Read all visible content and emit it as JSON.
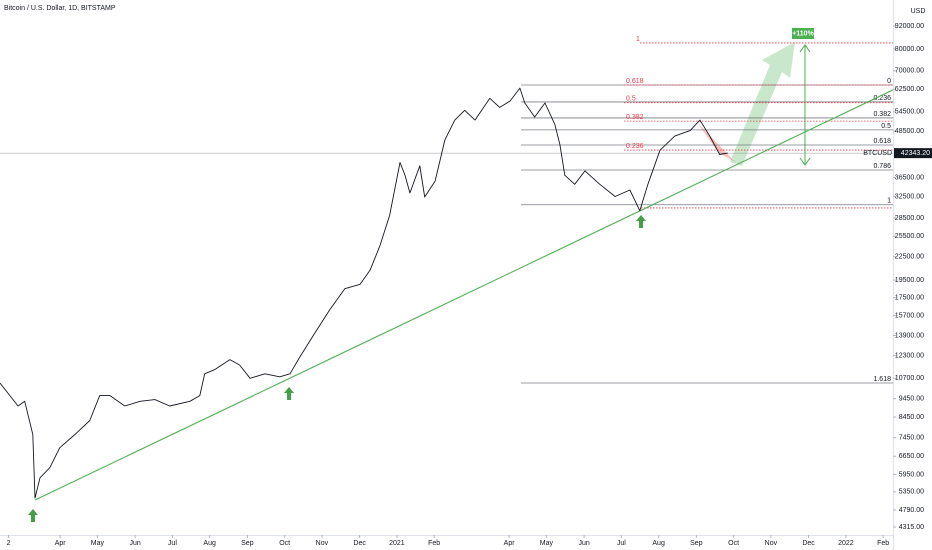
{
  "chart_data": {
    "type": "line",
    "title": "Bitcoin / U.S. Dollar, 1D, BITSTAMP",
    "currency": "USD",
    "log_scale": true,
    "xlim": [
      2020.116,
      2022.105
    ],
    "ylim": [
      4110,
      107900
    ],
    "xticks": [
      {
        "value": 2020.135,
        "label": "2"
      },
      {
        "value": 2020.25,
        "label": "Apr"
      },
      {
        "value": 2020.333,
        "label": "May"
      },
      {
        "value": 2020.417,
        "label": "Jun"
      },
      {
        "value": 2020.5,
        "label": "Jul"
      },
      {
        "value": 2020.583,
        "label": "Aug"
      },
      {
        "value": 2020.667,
        "label": "Sep"
      },
      {
        "value": 2020.75,
        "label": "Oct"
      },
      {
        "value": 2020.833,
        "label": "Nov"
      },
      {
        "value": 2020.917,
        "label": "Dec"
      },
      2021,
      {
        "value": 2021.083,
        "label": "Feb"
      },
      {
        "value": 2021.25,
        "label": "Apr"
      },
      {
        "value": 2021.333,
        "label": "May"
      },
      {
        "value": 2021.417,
        "label": "Jun"
      },
      {
        "value": 2021.5,
        "label": "Jul"
      },
      {
        "value": 2021.583,
        "label": "Aug"
      },
      {
        "value": 2021.667,
        "label": "Sep"
      },
      {
        "value": 2021.75,
        "label": "Oct"
      },
      {
        "value": 2021.833,
        "label": "Nov"
      },
      {
        "value": 2021.917,
        "label": "Dec"
      },
      2022,
      {
        "value": 2022.083,
        "label": "Feb"
      }
    ],
    "yticks": [
      {
        "value": 4315,
        "label": "4315.00"
      },
      {
        "value": 4790,
        "label": "4790.00"
      },
      {
        "value": 5350,
        "label": "5350.00"
      },
      {
        "value": 5950,
        "label": "5950.00"
      },
      {
        "value": 6650,
        "label": "6650.00"
      },
      {
        "value": 7450,
        "label": "7450.00"
      },
      {
        "value": 8450,
        "label": "8450.00"
      },
      {
        "value": 9450,
        "label": "9450.00"
      },
      {
        "value": 10700,
        "label": "10700.00"
      },
      {
        "value": 12300,
        "label": "12300.00"
      },
      {
        "value": 13900,
        "label": "13900.00"
      },
      {
        "value": 15700,
        "label": "15700.00"
      },
      {
        "value": 17500,
        "label": "17500.00"
      },
      {
        "value": 19500,
        "label": "19500.00"
      },
      {
        "value": 22500,
        "label": "22500.00"
      },
      {
        "value": 25500,
        "label": "25500.00"
      },
      {
        "value": 28500,
        "label": "28500.00"
      },
      {
        "value": 32500,
        "label": "32500.00"
      },
      {
        "value": 36500,
        "label": "36500.00"
      },
      {
        "value": 48500,
        "label": "48500.00"
      },
      {
        "value": 54500,
        "label": "54500.00"
      },
      {
        "value": 62500,
        "label": "62500.00"
      },
      {
        "value": 70000,
        "label": "70000.00"
      },
      {
        "value": 80000,
        "label": "80000.00"
      },
      {
        "value": 92000,
        "label": "92000.00"
      }
    ],
    "series": [
      {
        "name": "BTCUSD",
        "color": "#131722",
        "x": [
          2020.116,
          2020.138,
          2020.156,
          2020.171,
          2020.189,
          2020.194,
          2020.205,
          2020.227,
          2020.249,
          2020.283,
          2020.316,
          2020.338,
          2020.361,
          2020.394,
          2020.428,
          2020.461,
          2020.494,
          2020.539,
          2020.561,
          2020.572,
          2020.595,
          2020.628,
          2020.65,
          2020.673,
          2020.706,
          2020.739,
          2020.762,
          2020.784,
          2020.817,
          2020.851,
          2020.884,
          2020.918,
          2020.94,
          2020.962,
          2020.984,
          2021.007,
          2021.018,
          2021.029,
          2021.051,
          2021.062,
          2021.085,
          2021.107,
          2021.129,
          2021.151,
          2021.174,
          2021.207,
          2021.229,
          2021.252,
          2021.274,
          2021.285,
          2021.307,
          2021.33,
          2021.352,
          2021.363,
          2021.374,
          2021.396,
          2021.419,
          2021.452,
          2021.486,
          2021.519,
          2021.541,
          2021.559,
          2021.586,
          2021.619,
          2021.653,
          2021.675,
          2021.697,
          2021.719,
          2021.737
        ],
        "values": [
          10400,
          9630,
          9040,
          9300,
          7600,
          5150,
          5830,
          6200,
          7000,
          7600,
          8270,
          9630,
          9630,
          9040,
          9300,
          9400,
          9040,
          9300,
          9630,
          11000,
          11300,
          12000,
          11600,
          10700,
          11000,
          10800,
          11000,
          12200,
          14100,
          16300,
          18500,
          19000,
          20700,
          24000,
          29000,
          40000,
          37000,
          33200,
          39200,
          32400,
          35700,
          45900,
          51800,
          55000,
          51800,
          59200,
          56000,
          58200,
          63000,
          57500,
          52800,
          57500,
          50400,
          44600,
          37000,
          35000,
          38000,
          35000,
          32500,
          33800,
          29800,
          35000,
          43100,
          47000,
          48600,
          51800,
          47000,
          42000,
          42343.2
        ]
      }
    ],
    "last_price": {
      "value": 42343.2,
      "label": "42343.20"
    },
    "trendline": {
      "color": "#4caf50",
      "x": [
        2020.194,
        2022.105
      ],
      "values": [
        5090,
        62300
      ]
    },
    "fib_levels": [
      {
        "level": 0,
        "price": 64200
      },
      {
        "level": 0.236,
        "price": 57900
      },
      {
        "level": 0.382,
        "price": 52500
      },
      {
        "level": 0.5,
        "price": 48800
      },
      {
        "level": 0.618,
        "price": 44500
      },
      {
        "level": 0.786,
        "price": 38200
      },
      {
        "level": 1,
        "price": 30900
      },
      {
        "level": 1.618,
        "price": 10400
      }
    ],
    "fib_extension": [
      {
        "level": 1,
        "price": 83000
      },
      {
        "level": 0.618,
        "price": 64200
      },
      {
        "level": 0.5,
        "price": 57600
      },
      {
        "level": 0.382,
        "price": 51500
      },
      {
        "level": 0.236,
        "price": 43150
      },
      {
        "price": 30300
      }
    ],
    "target_label": "+110%"
  }
}
